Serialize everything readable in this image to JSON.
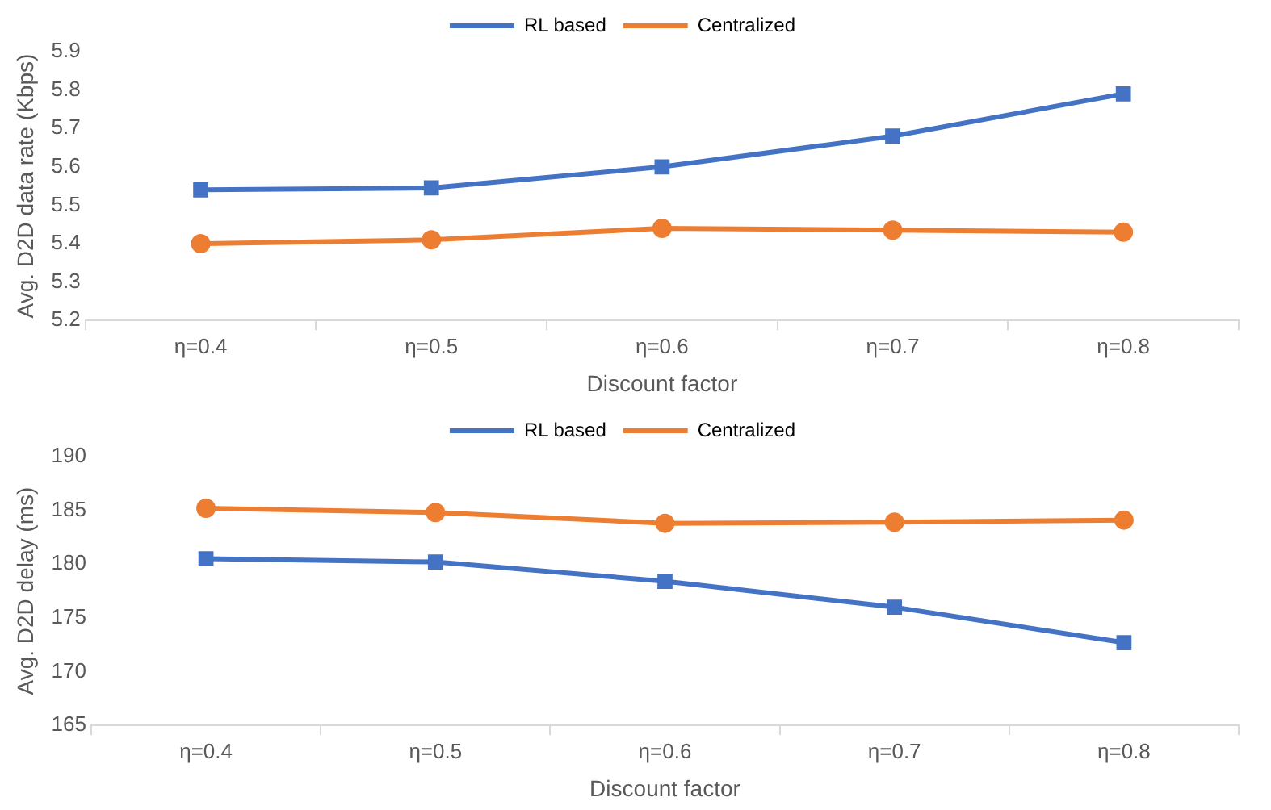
{
  "chart_data": [
    {
      "type": "line",
      "xlabel": "Discount factor",
      "ylabel": "Avg. D2D data rate (Kbps)",
      "categories": [
        "η=0.4",
        "η=0.5",
        "η=0.6",
        "η=0.7",
        "η=0.8"
      ],
      "series": [
        {
          "name": "RL based",
          "color": "#4472c4",
          "marker": "square",
          "values": [
            5.54,
            5.545,
            5.6,
            5.68,
            5.79
          ]
        },
        {
          "name": "Centralized",
          "color": "#ed7d31",
          "marker": "circle",
          "values": [
            5.4,
            5.41,
            5.44,
            5.435,
            5.43
          ]
        }
      ],
      "ylim": [
        5.2,
        5.9
      ],
      "yticks": [
        5.2,
        5.3,
        5.4,
        5.5,
        5.6,
        5.7,
        5.8,
        5.9
      ],
      "grid": false,
      "legend": "top",
      "line_style": "solid"
    },
    {
      "type": "line",
      "xlabel": "Discount factor",
      "ylabel": "Avg. D2D delay (ms)",
      "categories": [
        "η=0.4",
        "η=0.5",
        "η=0.6",
        "η=0.7",
        "η=0.8"
      ],
      "series": [
        {
          "name": "RL based",
          "color": "#4472c4",
          "marker": "square",
          "values": [
            180.5,
            180.2,
            178.4,
            176.0,
            172.7
          ]
        },
        {
          "name": "Centralized",
          "color": "#ed7d31",
          "marker": "circle",
          "values": [
            185.2,
            184.8,
            183.8,
            183.9,
            184.1
          ]
        }
      ],
      "ylim": [
        165,
        190
      ],
      "yticks": [
        165,
        170,
        175,
        180,
        185,
        190
      ],
      "grid": false,
      "legend": "top",
      "line_style": "solid"
    }
  ]
}
